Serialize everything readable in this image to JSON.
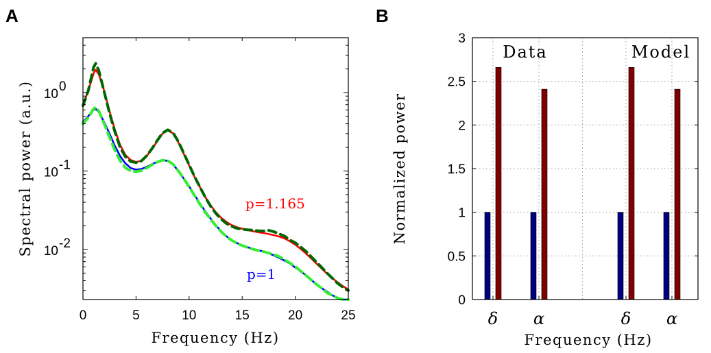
{
  "panels": {
    "a_label": "A",
    "b_label": "B"
  },
  "chart_data": [
    {
      "type": "line",
      "panel": "A",
      "xlabel": "Frequency (Hz)",
      "ylabel": "Spectral power (a.u.)",
      "xlim": [
        0,
        25
      ],
      "ylim": [
        0.0023,
        5
      ],
      "yscale": "log",
      "xticks": [
        "0",
        "5",
        "10",
        "15",
        "20",
        "25"
      ],
      "yticks": [
        {
          "value": 1,
          "base": "10",
          "exp": "0"
        },
        {
          "value": 0.1,
          "base": "10",
          "exp": "-1"
        },
        {
          "value": 0.01,
          "base": "10",
          "exp": "-2"
        }
      ],
      "grid": false,
      "annotations": [
        {
          "text": "p=1.165",
          "color": "#ff0000"
        },
        {
          "text": "p=1",
          "color": "#0000ff"
        }
      ],
      "series": [
        {
          "color": "#0000ff",
          "dash": false,
          "x": [
            0,
            0.5,
            1,
            1.2,
            1.5,
            2,
            2.5,
            3,
            3.5,
            4,
            4.5,
            5,
            5.5,
            6,
            6.5,
            7,
            7.5,
            8,
            8.5,
            9,
            9.5,
            10,
            10.5,
            11,
            11.5,
            12,
            12.5,
            13,
            13.5,
            14,
            14.5,
            15,
            15.5,
            16,
            16.5,
            17,
            17.5,
            18,
            18.5,
            19,
            19.5,
            20,
            20.5,
            21,
            21.5,
            22,
            22.5,
            23,
            23.5,
            24,
            24.5,
            25
          ],
          "y": [
            0.42,
            0.5,
            0.6,
            0.62,
            0.56,
            0.42,
            0.3,
            0.21,
            0.155,
            0.125,
            0.109,
            0.104,
            0.106,
            0.113,
            0.122,
            0.131,
            0.137,
            0.135,
            0.12,
            0.1,
            0.08,
            0.064,
            0.05,
            0.039,
            0.031,
            0.025,
            0.0205,
            0.0172,
            0.0148,
            0.0132,
            0.0121,
            0.0113,
            0.0107,
            0.0102,
            0.0098,
            0.0094,
            0.0089,
            0.0084,
            0.0078,
            0.0072,
            0.0066,
            0.0059,
            0.0053,
            0.0047,
            0.0041,
            0.0036,
            0.0032,
            0.0029,
            0.0026,
            0.0024,
            0.00225,
            0.0021
          ]
        },
        {
          "color": "#33ee33",
          "dash": true,
          "x": [
            0,
            0.5,
            1,
            1.2,
            1.5,
            2,
            2.5,
            3,
            3.5,
            4,
            4.5,
            5,
            5.5,
            6,
            6.5,
            7,
            7.5,
            8,
            8.5,
            9,
            9.5,
            10,
            10.5,
            11,
            11.5,
            12,
            12.5,
            13,
            13.5,
            14,
            14.5,
            15,
            15.5,
            16,
            16.5,
            17,
            17.5,
            18,
            18.5,
            19,
            19.5,
            20,
            20.5,
            21,
            21.5,
            22,
            22.5,
            23,
            23.5,
            24,
            24.5,
            25
          ],
          "y": [
            0.4,
            0.48,
            0.62,
            0.65,
            0.58,
            0.4,
            0.27,
            0.185,
            0.135,
            0.11,
            0.1,
            0.098,
            0.101,
            0.109,
            0.12,
            0.13,
            0.137,
            0.136,
            0.121,
            0.1,
            0.08,
            0.063,
            0.049,
            0.038,
            0.03,
            0.0245,
            0.0202,
            0.017,
            0.0147,
            0.0131,
            0.012,
            0.0112,
            0.0106,
            0.0101,
            0.0097,
            0.0094,
            0.009,
            0.0086,
            0.0081,
            0.0074,
            0.0067,
            0.0061,
            0.0053,
            0.0047,
            0.0041,
            0.0036,
            0.0032,
            0.0028,
            0.0026,
            0.0024,
            0.0022,
            0.002
          ]
        },
        {
          "color": "#ff0000",
          "dash": false,
          "x": [
            0,
            0.5,
            1,
            1.2,
            1.5,
            2,
            2.5,
            3,
            3.5,
            4,
            4.5,
            5,
            5.5,
            6,
            6.5,
            7,
            7.5,
            8,
            8.5,
            9,
            9.5,
            10,
            10.5,
            11,
            11.5,
            12,
            12.5,
            13,
            13.5,
            14,
            14.5,
            15,
            15.5,
            16,
            16.5,
            17,
            17.5,
            18,
            18.5,
            19,
            19.5,
            20,
            20.5,
            21,
            21.5,
            22,
            22.5,
            23,
            23.5,
            24,
            24.5,
            25
          ],
          "y": [
            0.7,
            1.05,
            1.75,
            1.95,
            1.7,
            1.05,
            0.58,
            0.34,
            0.215,
            0.16,
            0.138,
            0.13,
            0.135,
            0.155,
            0.19,
            0.24,
            0.3,
            0.33,
            0.3,
            0.23,
            0.165,
            0.118,
            0.085,
            0.063,
            0.047,
            0.037,
            0.03,
            0.0255,
            0.0225,
            0.0205,
            0.0192,
            0.0184,
            0.0177,
            0.0171,
            0.0166,
            0.0162,
            0.0157,
            0.0152,
            0.0146,
            0.0138,
            0.0127,
            0.0115,
            0.0102,
            0.0089,
            0.0077,
            0.0066,
            0.0057,
            0.0049,
            0.0043,
            0.0038,
            0.0034,
            0.0031
          ]
        },
        {
          "color": "#006600",
          "dash": true,
          "x": [
            0,
            0.5,
            1,
            1.2,
            1.5,
            2,
            2.5,
            3,
            3.5,
            4,
            4.5,
            5,
            5.5,
            6,
            6.5,
            7,
            7.5,
            8,
            8.5,
            9,
            9.5,
            10,
            10.5,
            11,
            11.5,
            12,
            12.5,
            13,
            13.5,
            14,
            14.5,
            15,
            15.5,
            16,
            16.5,
            17,
            17.5,
            18,
            18.5,
            19,
            19.5,
            20,
            20.5,
            21,
            21.5,
            22,
            22.5,
            23,
            23.5,
            24,
            24.5,
            25
          ],
          "y": [
            0.68,
            1.05,
            2.1,
            2.35,
            1.9,
            1.02,
            0.55,
            0.32,
            0.2,
            0.152,
            0.132,
            0.128,
            0.134,
            0.156,
            0.192,
            0.245,
            0.305,
            0.335,
            0.305,
            0.235,
            0.168,
            0.12,
            0.086,
            0.063,
            0.047,
            0.036,
            0.029,
            0.0245,
            0.0215,
            0.0197,
            0.0186,
            0.0181,
            0.0178,
            0.0176,
            0.0173,
            0.0172,
            0.0175,
            0.0168,
            0.0158,
            0.0148,
            0.0132,
            0.0122,
            0.0108,
            0.0095,
            0.0081,
            0.0069,
            0.0059,
            0.005,
            0.0043,
            0.0037,
            0.0033,
            0.003
          ]
        }
      ]
    },
    {
      "type": "bar",
      "panel": "B",
      "xlabel": "Frequency (Hz)",
      "ylabel": "Normalized power",
      "ylim": [
        0,
        3
      ],
      "yticks": [
        "0",
        "0.5",
        "1",
        "1.5",
        "2",
        "2.5",
        "3"
      ],
      "grid": true,
      "groups": [
        {
          "label": "Data",
          "categories": [
            "δ",
            "α"
          ]
        },
        {
          "label": "Model",
          "categories": [
            "δ",
            "α"
          ]
        }
      ],
      "categories": [
        "δ",
        "α",
        "δ",
        "α"
      ],
      "series": [
        {
          "color": "#00007f",
          "values": [
            1,
            1,
            1,
            1
          ]
        },
        {
          "color": "#7f0000",
          "values": [
            2.66,
            2.41,
            2.66,
            2.41
          ]
        }
      ]
    }
  ]
}
